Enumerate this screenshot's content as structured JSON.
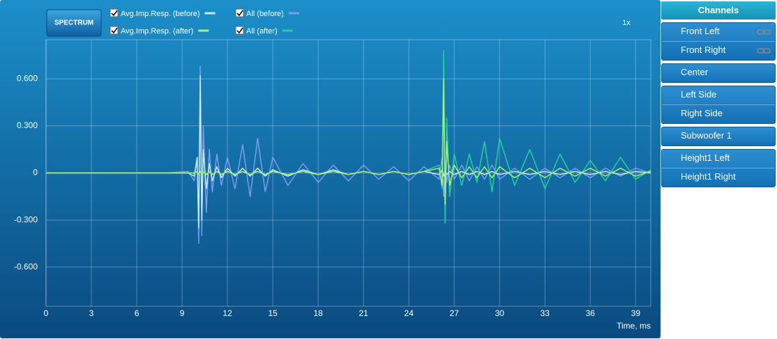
{
  "toolbar": {
    "button": "SPECTRUM",
    "zoom": "1x"
  },
  "chart_data": {
    "type": "line",
    "xlabel": "Time, ms",
    "x": [
      0,
      8,
      9.4,
      9.8,
      10.0,
      10.1,
      10.2,
      10.3,
      10.4,
      10.6,
      10.8,
      11.0,
      11.3,
      11.6,
      12,
      12.5,
      13,
      13.5,
      14,
      14.5,
      15,
      16,
      17,
      18,
      19,
      20,
      21,
      22,
      23,
      24,
      25,
      26,
      26.2,
      26.3,
      26.4,
      26.5,
      26.7,
      27,
      27.5,
      28,
      28.5,
      29,
      29.5,
      30,
      31,
      32,
      33,
      34,
      35,
      36,
      37,
      38,
      39,
      40
    ],
    "series": [
      {
        "name": "Avg.Imp.Resp. (before)",
        "color": "#c6ecfa",
        "values": [
          0,
          0,
          0,
          -0.02,
          0.1,
          -0.35,
          0.62,
          -0.3,
          0.15,
          -0.1,
          0.06,
          -0.05,
          0.04,
          -0.03,
          0.03,
          -0.02,
          0.03,
          -0.02,
          0.03,
          -0.02,
          0.02,
          -0.02,
          0.02,
          -0.01,
          0.02,
          -0.01,
          0.01,
          -0.01,
          0.01,
          -0.01,
          0.01,
          -0.01,
          0.02,
          -0.02,
          0.01,
          -0.01,
          0.01,
          -0.01,
          0.01,
          -0.01,
          0.01,
          -0.01,
          0.01,
          -0.01,
          0.01,
          -0.01,
          0.01,
          -0.01,
          0.01,
          -0.01,
          0.01,
          -0.01,
          0.01,
          0
        ]
      },
      {
        "name": "All (before)",
        "color": "#7b9cf2",
        "values": [
          0,
          0,
          0.01,
          -0.05,
          0.1,
          -0.45,
          0.68,
          -0.4,
          0.3,
          -0.25,
          0.15,
          -0.12,
          0.12,
          -0.08,
          0.1,
          -0.1,
          0.18,
          -0.15,
          0.22,
          -0.12,
          0.1,
          -0.08,
          0.06,
          -0.06,
          0.05,
          -0.05,
          0.05,
          -0.04,
          0.04,
          -0.05,
          0.04,
          -0.04,
          0.1,
          -0.15,
          0.08,
          -0.06,
          0.05,
          -0.04,
          0.05,
          -0.05,
          0.04,
          -0.04,
          0.05,
          -0.04,
          0.03,
          -0.04,
          0.03,
          -0.03,
          0.03,
          -0.03,
          0.03,
          -0.02,
          0.03,
          0
        ]
      },
      {
        "name": "Avg.Imp.Resp. (after)",
        "color": "#a6f56e",
        "values": [
          0,
          0,
          0,
          0,
          0.01,
          -0.01,
          0.01,
          -0.01,
          0.01,
          -0.01,
          0.01,
          -0.01,
          0.01,
          -0.01,
          0.01,
          -0.01,
          0.01,
          -0.01,
          0.01,
          -0.01,
          0.01,
          -0.01,
          0.01,
          -0.01,
          0.01,
          -0.01,
          0.01,
          -0.01,
          0.01,
          -0.01,
          0.01,
          0.03,
          -0.08,
          0.6,
          -0.2,
          0.2,
          -0.08,
          0.05,
          -0.03,
          0.04,
          -0.03,
          0.04,
          -0.03,
          0.04,
          -0.03,
          0.03,
          -0.03,
          0.03,
          -0.02,
          0.03,
          -0.02,
          0.03,
          -0.02,
          0.01
        ]
      },
      {
        "name": "All (after)",
        "color": "#1fd39b",
        "values": [
          0,
          0,
          0,
          0,
          0.01,
          -0.01,
          0.01,
          -0.01,
          0.01,
          -0.01,
          0.01,
          -0.01,
          0.01,
          -0.01,
          0.01,
          -0.01,
          0.01,
          -0.01,
          0.01,
          -0.01,
          0.01,
          -0.01,
          0.01,
          -0.01,
          0.01,
          -0.01,
          0.01,
          -0.01,
          0.01,
          -0.01,
          0.01,
          0.05,
          -0.1,
          0.78,
          -0.32,
          0.35,
          -0.15,
          0.12,
          -0.08,
          0.12,
          -0.06,
          0.2,
          -0.12,
          0.22,
          -0.08,
          0.15,
          -0.1,
          0.12,
          -0.06,
          0.08,
          -0.05,
          0.1,
          -0.04,
          0.02
        ]
      }
    ],
    "xlim": [
      0,
      40
    ],
    "xticks": [
      0,
      3,
      6,
      9,
      12,
      15,
      18,
      21,
      24,
      27,
      30,
      33,
      36,
      39
    ],
    "ylim": [
      -0.85,
      0.85
    ],
    "yticks": [
      {
        "value": -0.6,
        "label": "-0.600"
      },
      {
        "value": -0.3,
        "label": "-0.300"
      },
      0,
      {
        "value": 0.3,
        "label": "0.300"
      },
      {
        "value": 0.6,
        "label": "0.600"
      }
    ],
    "grid": true
  },
  "channels": {
    "title": "Channels",
    "groups": [
      {
        "items": [
          "Front Left",
          "Front Right"
        ],
        "linked": true
      },
      {
        "items": [
          "Center"
        ]
      },
      {
        "items": [
          "Left Side",
          "Right Side"
        ]
      },
      {
        "items": [
          "Subwoofer 1"
        ]
      },
      {
        "items": [
          "Height1 Left",
          "Height1 Right"
        ]
      }
    ]
  }
}
